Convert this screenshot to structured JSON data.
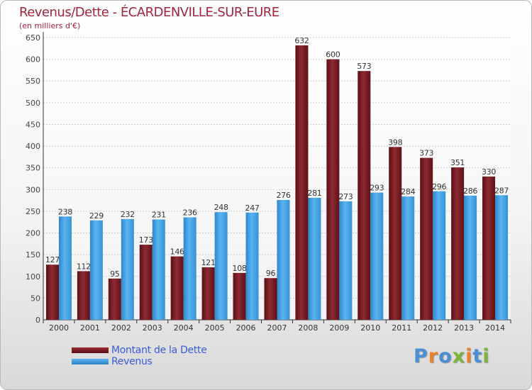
{
  "chart_data": {
    "type": "bar",
    "title": "Revenus/Dette - ÉCARDENVILLE-SUR-EURE",
    "subtitle": "(en milliers d'€)",
    "xlabel": "",
    "ylabel": "",
    "ylim": [
      0,
      650
    ],
    "yticks": [
      "0",
      "50",
      "100",
      "150",
      "200",
      "250",
      "300",
      "350",
      "400",
      "450",
      "500",
      "550",
      "600",
      "650"
    ],
    "grid": true,
    "legend_position": "bottom-left",
    "categories": [
      "2000",
      "2001",
      "2002",
      "2003",
      "2004",
      "2005",
      "2006",
      "2007",
      "2008",
      "2009",
      "2010",
      "2011",
      "2012",
      "2013",
      "2014"
    ],
    "series": [
      {
        "name": "Montant de la Dette",
        "color": "#7a1c24",
        "values": [
          127,
          112,
          95,
          173,
          146,
          121,
          108,
          96,
          632,
          600,
          573,
          398,
          373,
          351,
          330
        ]
      },
      {
        "name": "Revenus",
        "color": "#3d9be0",
        "values": [
          238,
          229,
          232,
          231,
          236,
          248,
          247,
          276,
          281,
          273,
          293,
          284,
          296,
          286,
          287
        ]
      }
    ]
  },
  "logo": {
    "letters": [
      "P",
      "r",
      "o",
      "x",
      "i",
      "t",
      "i"
    ],
    "colors": [
      "#4a8fd6",
      "#e8822a",
      "#4a8fd6",
      "#7ab43a",
      "#e8822a",
      "#4a8fd6",
      "#7ab43a"
    ]
  }
}
